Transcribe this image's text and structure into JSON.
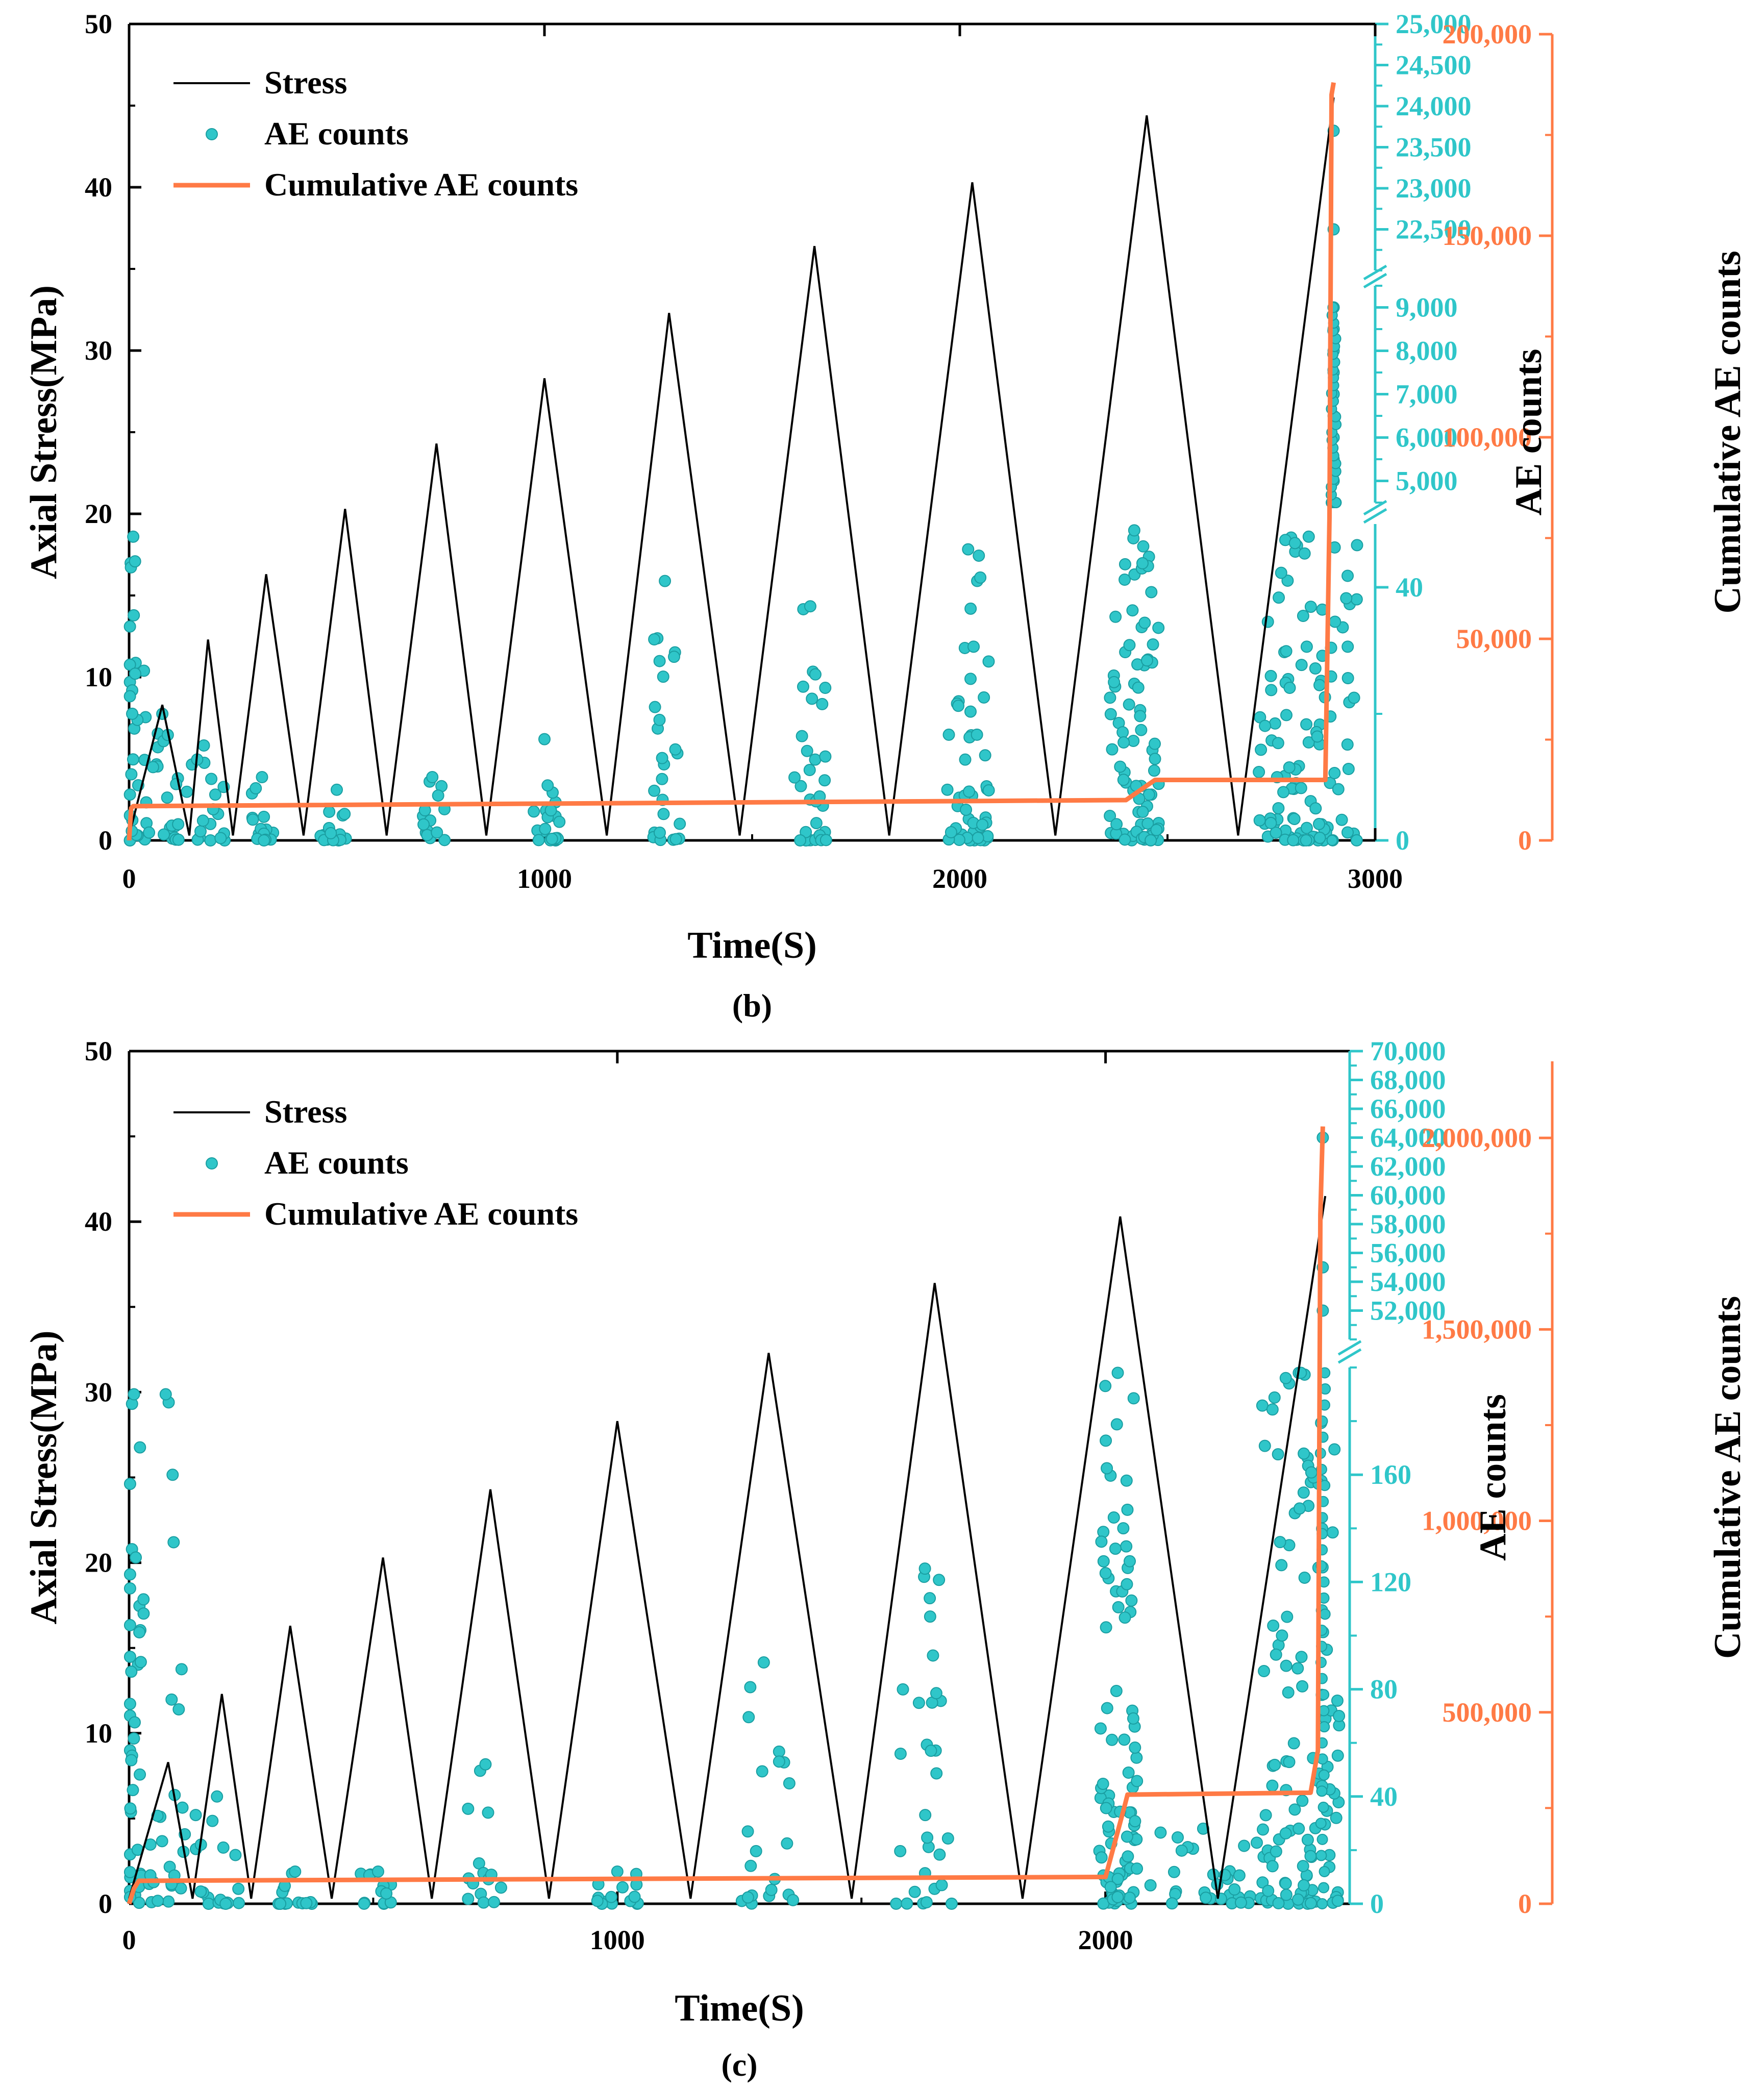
{
  "colors": {
    "stress": "#000000",
    "ae": "#2fc6c9",
    "cumulative": "#ff7a45",
    "axis": "#000000"
  },
  "chart_data": [
    {
      "id": "b",
      "type": "line",
      "panel_label": "(b)",
      "xlabel": "Time(S)",
      "ylabel_left": "Axial Stress(MPa)",
      "ylabel_ae": "AE counts",
      "ylabel_cum": "Cumulative AE counts",
      "xlim": [
        0,
        3000
      ],
      "x_ticks": [
        "0",
        "1000",
        "2000",
        "3000"
      ],
      "stress_ylim": [
        0,
        50
      ],
      "stress_ticks": [
        "0",
        "10",
        "20",
        "30",
        "40",
        "50"
      ],
      "ae_axis": {
        "break": true,
        "segments": [
          {
            "range": [
              0,
              50
            ],
            "ticks": [
              0,
              40
            ]
          },
          {
            "range": [
              4500,
              9500
            ],
            "ticks": [
              5000,
              6000,
              7000,
              8000,
              9000
            ]
          },
          {
            "range": [
              22000,
              25000
            ],
            "ticks": [
              22500,
              23000,
              23500,
              24000,
              24500,
              25000
            ]
          }
        ],
        "tick_labels": [
          "0",
          "40",
          "5,000",
          "6,000",
          "7,000",
          "8,000",
          "9,000",
          "22,500",
          "23,000",
          "23,500",
          "24,000",
          "24,500",
          "25,000"
        ]
      },
      "cum_ylim": [
        0,
        200000
      ],
      "cum_ticks": [
        "0",
        "50,000",
        "100,000",
        "150,000",
        "200,000"
      ],
      "legend": [
        "Stress",
        "AE counts",
        "Cumulative AE counts"
      ],
      "series": [
        {
          "name": "Stress",
          "type": "line",
          "x": [
            0,
            80,
            145,
            190,
            250,
            330,
            420,
            520,
            620,
            740,
            860,
            1000,
            1150,
            1300,
            1470,
            1650,
            1830,
            2030,
            2230,
            2450,
            2670,
            2900
          ],
          "y": [
            0.3,
            8.3,
            0.3,
            12.3,
            0.3,
            16.3,
            0.3,
            20.3,
            0.3,
            24.3,
            0.3,
            28.3,
            0.3,
            32.3,
            0.3,
            36.4,
            0.3,
            40.3,
            0.3,
            44.4,
            0.3,
            45.5
          ]
        },
        {
          "name": "AE counts",
          "type": "scatter",
          "bursts": [
            {
              "center": 10,
              "width": 30,
              "count": 30,
              "max": 48
            },
            {
              "center": 80,
              "width": 50,
              "count": 22,
              "max": 20
            },
            {
              "center": 180,
              "width": 50,
              "count": 18,
              "max": 15
            },
            {
              "center": 320,
              "width": 30,
              "count": 14,
              "max": 10
            },
            {
              "center": 500,
              "width": 40,
              "count": 14,
              "max": 8
            },
            {
              "center": 730,
              "width": 30,
              "count": 14,
              "max": 10
            },
            {
              "center": 1000,
              "width": 40,
              "count": 20,
              "max": 16
            },
            {
              "center": 1290,
              "width": 40,
              "count": 26,
              "max": 41
            },
            {
              "center": 1640,
              "width": 40,
              "count": 32,
              "max": 37
            },
            {
              "center": 2020,
              "width": 50,
              "count": 50,
              "max": 46
            },
            {
              "center": 2420,
              "width": 60,
              "count": 80,
              "max": 49
            },
            {
              "center": 2840,
              "width": 120,
              "count": 110,
              "max": 48
            }
          ],
          "tail": {
            "x": 2900,
            "values": [
              5000,
              5500,
              6000,
              6500,
              7000,
              7500,
              8000,
              8500,
              9000,
              22500,
              23700
            ]
          }
        },
        {
          "name": "Cumulative AE counts",
          "type": "line",
          "x": [
            0,
            5,
            10,
            2400,
            2470,
            2880,
            2890,
            2895,
            2900
          ],
          "y": [
            0,
            8000,
            8500,
            10000,
            15000,
            15000,
            80000,
            185000,
            188000
          ]
        }
      ]
    },
    {
      "id": "c",
      "type": "line",
      "panel_label": "(c)",
      "xlabel": "Time(S)",
      "ylabel_left": "Axial Stress(MPa)",
      "ylabel_ae": "AE counts",
      "ylabel_cum": "Cumulative AE counts",
      "xlim": [
        0,
        2500
      ],
      "x_ticks": [
        "0",
        "1000",
        "2000"
      ],
      "stress_ylim": [
        0,
        50
      ],
      "stress_ticks": [
        "0",
        "10",
        "20",
        "30",
        "40",
        "50"
      ],
      "ae_axis": {
        "break": true,
        "segments": [
          {
            "range": [
              0,
              200
            ],
            "ticks": [
              0,
              40,
              80,
              120,
              160
            ]
          },
          {
            "range": [
              50000,
              70000
            ],
            "ticks": [
              52000,
              54000,
              56000,
              58000,
              60000,
              62000,
              64000,
              66000,
              68000,
              70000
            ]
          }
        ],
        "tick_labels": [
          "0",
          "40",
          "80",
          "120",
          "160",
          "52,000",
          "54,000",
          "56,000",
          "58,000",
          "60,000",
          "62,000",
          "64,000",
          "66,000",
          "68,000",
          "70,000"
        ]
      },
      "cum_ylim": [
        0,
        2200000
      ],
      "cum_ticks": [
        "0",
        "500,000",
        "1,000,000",
        "1,500,000",
        "2,000,000"
      ],
      "legend": [
        "Stress",
        "AE counts",
        "Cumulative AE counts"
      ],
      "series": [
        {
          "name": "Stress",
          "type": "line",
          "x": [
            0,
            80,
            130,
            190,
            250,
            330,
            415,
            520,
            620,
            740,
            860,
            1000,
            1150,
            1310,
            1480,
            1650,
            1830,
            2030,
            2230,
            2450
          ],
          "y": [
            0.3,
            8.3,
            0.3,
            12.3,
            0.3,
            16.3,
            0.3,
            20.3,
            0.3,
            24.3,
            0.3,
            28.3,
            0.3,
            32.3,
            0.3,
            36.4,
            0.3,
            40.3,
            0.3,
            41.5
          ]
        },
        {
          "name": "AE counts",
          "type": "scatter",
          "bursts": [
            {
              "center": 10,
              "width": 25,
              "count": 40,
              "max": 190
            },
            {
              "center": 75,
              "width": 40,
              "count": 25,
              "max": 190
            },
            {
              "center": 180,
              "width": 50,
              "count": 18,
              "max": 40
            },
            {
              "center": 340,
              "width": 40,
              "count": 14,
              "max": 12
            },
            {
              "center": 510,
              "width": 40,
              "count": 12,
              "max": 12
            },
            {
              "center": 730,
              "width": 40,
              "count": 14,
              "max": 52
            },
            {
              "center": 1000,
              "width": 50,
              "count": 14,
              "max": 12
            },
            {
              "center": 1300,
              "width": 60,
              "count": 20,
              "max": 90
            },
            {
              "center": 1630,
              "width": 60,
              "count": 30,
              "max": 125
            },
            {
              "center": 2025,
              "width": 40,
              "count": 90,
              "max": 198
            },
            {
              "center": 2200,
              "width": 120,
              "count": 30,
              "max": 28
            },
            {
              "center": 2400,
              "width": 80,
              "count": 120,
              "max": 198
            }
          ],
          "tail": {
            "x": 2445,
            "values": [
              52000,
              55000,
              64000
            ]
          }
        },
        {
          "name": "Cumulative AE counts",
          "type": "line",
          "x": [
            0,
            10,
            20,
            2000,
            2040,
            2045,
            2420,
            2435,
            2440,
            2445
          ],
          "y": [
            0,
            40000,
            60000,
            70000,
            260000,
            285000,
            290000,
            400000,
            1800000,
            2030000
          ]
        }
      ]
    }
  ]
}
